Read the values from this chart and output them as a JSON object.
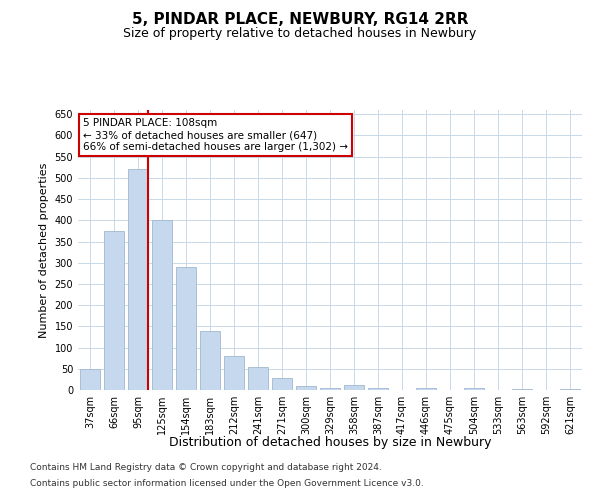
{
  "title": "5, PINDAR PLACE, NEWBURY, RG14 2RR",
  "subtitle": "Size of property relative to detached houses in Newbury",
  "xlabel": "Distribution of detached houses by size in Newbury",
  "ylabel": "Number of detached properties",
  "categories": [
    "37sqm",
    "66sqm",
    "95sqm",
    "125sqm",
    "154sqm",
    "183sqm",
    "212sqm",
    "241sqm",
    "271sqm",
    "300sqm",
    "329sqm",
    "358sqm",
    "387sqm",
    "417sqm",
    "446sqm",
    "475sqm",
    "504sqm",
    "533sqm",
    "563sqm",
    "592sqm",
    "621sqm"
  ],
  "values": [
    50,
    375,
    520,
    400,
    290,
    140,
    80,
    55,
    28,
    10,
    5,
    12,
    5,
    0,
    5,
    0,
    5,
    0,
    2,
    0,
    2
  ],
  "bar_color": "#c5d8ed",
  "bar_edge_color": "#a0b8d0",
  "ylim": [
    0,
    660
  ],
  "yticks": [
    0,
    50,
    100,
    150,
    200,
    250,
    300,
    350,
    400,
    450,
    500,
    550,
    600,
    650
  ],
  "vline_color": "#cc0000",
  "annotation_text": "5 PINDAR PLACE: 108sqm\n← 33% of detached houses are smaller (647)\n66% of semi-detached houses are larger (1,302) →",
  "annotation_box_color": "#ffffff",
  "annotation_box_edge_color": "#cc0000",
  "footer_line1": "Contains HM Land Registry data © Crown copyright and database right 2024.",
  "footer_line2": "Contains public sector information licensed under the Open Government Licence v3.0.",
  "background_color": "#ffffff",
  "grid_color": "#c8d8e8",
  "title_fontsize": 11,
  "subtitle_fontsize": 9,
  "xlabel_fontsize": 9,
  "ylabel_fontsize": 8,
  "tick_fontsize": 7,
  "annotation_fontsize": 7.5,
  "footer_fontsize": 6.5
}
